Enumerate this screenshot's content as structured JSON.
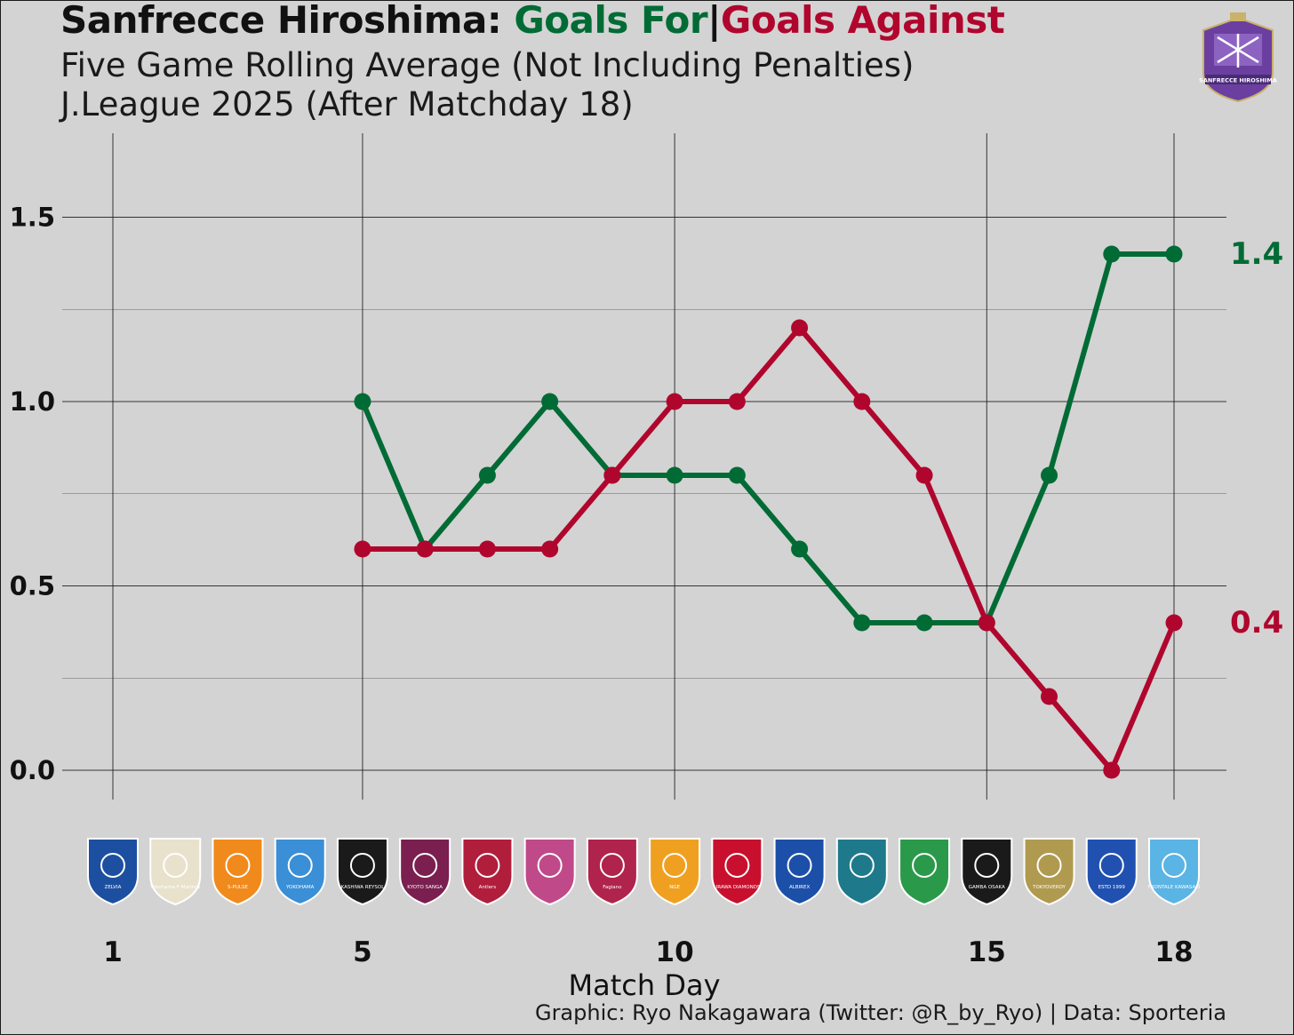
{
  "title": {
    "team": "Sanfrecce Hiroshima:",
    "goals_for": "Goals For",
    "separator": "|",
    "goals_against": "Goals Against"
  },
  "subtitle_1": "Five Game Rolling Average (Not Including Penalties)",
  "subtitle_2": "J.League 2025 (After Matchday 18)",
  "caption": "Graphic: Ryo Nakagawara (Twitter: @R_by_Ryo) | Data: Sporteria",
  "badge": {
    "icon": "sanfrecce-hiroshima-crest-icon",
    "text": "SANFRECCE HIROSHIMA",
    "color": "#6b3fa0"
  },
  "colors": {
    "goals_for": "#006b35",
    "goals_against": "#b0062e"
  },
  "chart_data": {
    "type": "line",
    "xlabel": "Match Day",
    "ylabel": "",
    "xlim": [
      1,
      18
    ],
    "ylim": [
      -0.08,
      1.72
    ],
    "x_ticks": [
      1,
      5,
      10,
      15,
      18
    ],
    "y_ticks": [
      "0.0",
      "0.5",
      "1.0",
      "1.5"
    ],
    "y_tick_values": [
      0,
      0.5,
      1.0,
      1.5
    ],
    "grid": true,
    "x": [
      5,
      6,
      7,
      8,
      9,
      10,
      11,
      12,
      13,
      14,
      15,
      16,
      17,
      18
    ],
    "series": [
      {
        "name": "Goals For",
        "color": "#006b35",
        "values": [
          1.0,
          0.6,
          0.8,
          1.0,
          0.8,
          0.8,
          0.8,
          0.6,
          0.4,
          0.4,
          0.4,
          0.8,
          1.4,
          1.4
        ],
        "end_label": "1.4"
      },
      {
        "name": "Goals Against",
        "color": "#b0062e",
        "values": [
          0.6,
          0.6,
          0.6,
          0.6,
          0.8,
          1.0,
          1.0,
          1.2,
          1.0,
          0.8,
          0.4,
          0.2,
          0.0,
          0.4
        ],
        "end_label": "0.4"
      }
    ],
    "opponents": [
      {
        "matchday": 1,
        "icon": "zelvia-crest-icon",
        "label": "ZELVIA"
      },
      {
        "matchday": 2,
        "icon": "yokohama-f-marinos-crest-icon",
        "label": "Yokohama F·Marinos"
      },
      {
        "matchday": 3,
        "icon": "shimizu-s-pulse-crest-icon",
        "label": "S-PULSE"
      },
      {
        "matchday": 4,
        "icon": "yokohama-fc-crest-icon",
        "label": "YOKOHAMA"
      },
      {
        "matchday": 5,
        "icon": "kashiwa-reysol-crest-icon",
        "label": "KASHIWA REYSOL"
      },
      {
        "matchday": 6,
        "icon": "kyoto-sanga-crest-icon",
        "label": "KYOTO SANGA"
      },
      {
        "matchday": 7,
        "icon": "kashima-antlers-crest-icon",
        "label": "Antlers"
      },
      {
        "matchday": 8,
        "icon": "cerezo-osaka-crest-icon",
        "label": ""
      },
      {
        "matchday": 9,
        "icon": "fagiano-okayama-crest-icon",
        "label": "Fagiano"
      },
      {
        "matchday": 10,
        "icon": "nagoya-grampus-crest-icon",
        "label": "NGE"
      },
      {
        "matchday": 11,
        "icon": "urawa-reds-crest-icon",
        "label": "URAWA DIAMONDS"
      },
      {
        "matchday": 12,
        "icon": "albirex-niigata-crest-icon",
        "label": "ALBIREX"
      },
      {
        "matchday": 13,
        "icon": "avispa-fukuoka-crest-icon",
        "label": ""
      },
      {
        "matchday": 14,
        "icon": "shonan-bellmare-crest-icon",
        "label": ""
      },
      {
        "matchday": 15,
        "icon": "gamba-osaka-crest-icon",
        "label": "GAMBA OSAKA"
      },
      {
        "matchday": 16,
        "icon": "tokyo-verdy-crest-icon",
        "label": "TOKYOVERDY"
      },
      {
        "matchday": 17,
        "icon": "fc-tokyo-crest-icon",
        "label": "ESTD 1999"
      },
      {
        "matchday": 18,
        "icon": "kawasaki-frontale-crest-icon",
        "label": "FRONTALE KAWASAKI"
      }
    ]
  }
}
